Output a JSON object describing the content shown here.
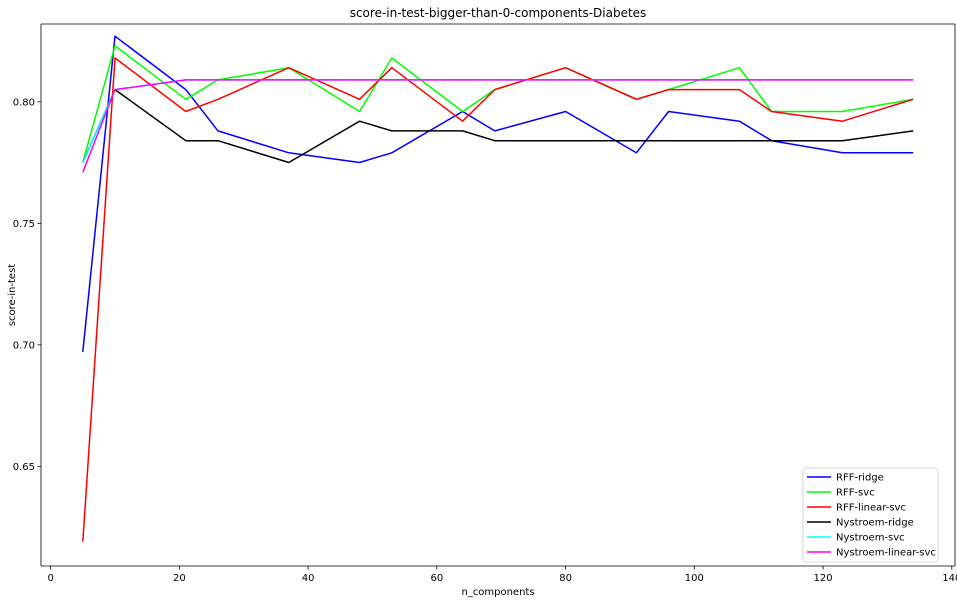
{
  "chart_data": {
    "type": "line",
    "title": "score-in-test-bigger-than-0-components-Diabetes",
    "xlabel": "n_components",
    "ylabel": "score-in-test",
    "xlim": [
      -1.5,
      140.5
    ],
    "ylim": [
      0.609,
      0.832
    ],
    "xticks": [
      0,
      20,
      40,
      60,
      80,
      100,
      120,
      140
    ],
    "yticks": [
      0.65,
      0.7,
      0.75,
      0.8
    ],
    "ytick_labels": [
      "0.65",
      "0.70",
      "0.75",
      "0.80"
    ],
    "grid": false,
    "legend_position": "lower-right",
    "x": [
      5,
      10,
      21,
      26,
      37,
      48,
      53,
      64,
      69,
      80,
      91,
      96,
      107,
      112,
      123,
      134
    ],
    "series": [
      {
        "name": "RFF-ridge",
        "color": "#0000ff",
        "values": [
          0.697,
          0.827,
          0.805,
          0.788,
          0.779,
          0.775,
          0.779,
          0.796,
          0.788,
          0.796,
          0.779,
          0.796,
          0.792,
          0.784,
          0.779,
          0.779
        ]
      },
      {
        "name": "RFF-svc",
        "color": "#00ff00",
        "values": [
          0.775,
          0.823,
          0.801,
          0.809,
          0.814,
          0.796,
          0.818,
          0.796,
          0.805,
          0.814,
          0.801,
          0.805,
          0.814,
          0.796,
          0.796,
          0.801
        ]
      },
      {
        "name": "RFF-linear-svc",
        "color": "#ff0000",
        "values": [
          0.619,
          0.818,
          0.796,
          0.801,
          0.814,
          0.801,
          0.814,
          0.792,
          0.805,
          0.814,
          0.801,
          0.805,
          0.805,
          0.796,
          0.792,
          0.801
        ]
      },
      {
        "name": "Nystroem-ridge",
        "color": "#000000",
        "values": [
          0.775,
          0.805,
          0.784,
          0.784,
          0.775,
          0.792,
          0.788,
          0.788,
          0.784,
          0.784,
          0.784,
          0.784,
          0.784,
          0.784,
          0.784,
          0.788
        ]
      },
      {
        "name": "Nystroem-svc",
        "color": "#00ffff",
        "values": [
          0.775,
          0.805,
          0.809,
          0.809,
          0.809,
          0.809,
          0.809,
          0.809,
          0.809,
          0.809,
          0.809,
          0.809,
          0.809,
          0.809,
          0.809,
          0.809
        ]
      },
      {
        "name": "Nystroem-linear-svc",
        "color": "#ff00ff",
        "values": [
          0.771,
          0.805,
          0.809,
          0.809,
          0.809,
          0.809,
          0.809,
          0.809,
          0.809,
          0.809,
          0.809,
          0.809,
          0.809,
          0.809,
          0.809,
          0.809
        ]
      }
    ]
  }
}
